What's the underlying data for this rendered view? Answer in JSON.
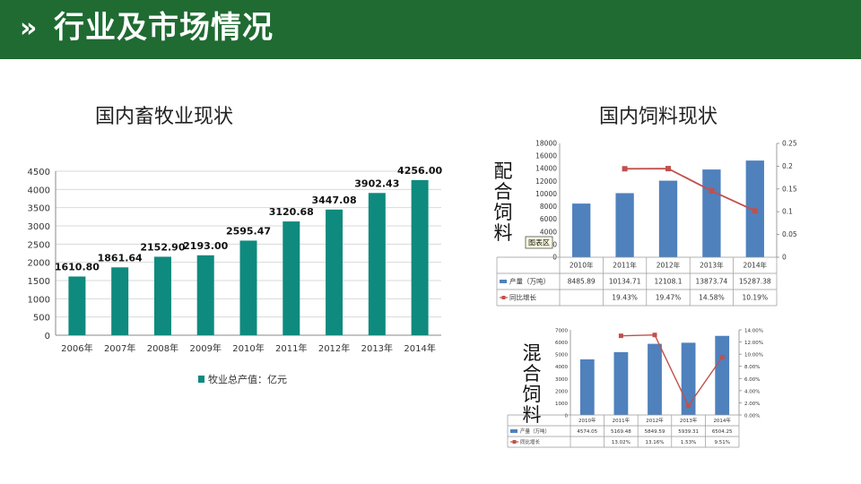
{
  "header": {
    "chevron": "»",
    "title": "行业及市场情况"
  },
  "left": {
    "heading": "国内畜牧业现状",
    "colors": {
      "bar": "#0f8a7e",
      "grid": "#d9d9d9",
      "axis": "#888888"
    },
    "chart_data": {
      "type": "bar",
      "categories": [
        "2006年",
        "2007年",
        "2008年",
        "2009年",
        "2010年",
        "2011年",
        "2012年",
        "2013年",
        "2014年"
      ],
      "values": [
        1610.8,
        1861.64,
        2152.9,
        2193.0,
        2595.47,
        3120.68,
        3447.08,
        3902.43,
        4256.0
      ],
      "value_labels": [
        "1610.80",
        "1861.64",
        "2152.90",
        "2193.00",
        "2595.47",
        "3120.68",
        "3447.08",
        "3902.43",
        "4256.00"
      ],
      "yticks": [
        "0",
        "500",
        "1000",
        "1500",
        "2000",
        "2500",
        "3000",
        "3500",
        "4000",
        "4500"
      ],
      "ylim": [
        0,
        4500
      ],
      "legend": "牧业总产值：亿元",
      "legend_position": "bottom",
      "grid": true
    }
  },
  "right_top": {
    "heading": "国内饲料现状",
    "side_label": [
      "配",
      "合",
      "饲",
      "料"
    ],
    "tooltip": "图表区",
    "colors": {
      "bar": "#4f81bd",
      "line": "#c0504d"
    },
    "chart_data": {
      "type": "bar",
      "categories": [
        "2010年",
        "2011年",
        "2012年",
        "2013年",
        "2014年"
      ],
      "series": [
        {
          "name": "产量（万吨）",
          "values": [
            8485.89,
            10134.71,
            12108.1,
            13873.74,
            15287.38
          ],
          "labels": [
            "8485.89",
            "10134.71",
            "12108.1",
            "13873.74",
            "15287.38"
          ]
        },
        {
          "name": "同比增长",
          "type": "line",
          "axis": "right",
          "values": [
            null,
            0.1943,
            0.1947,
            0.1458,
            0.1019
          ],
          "labels": [
            "",
            "19.43%",
            "19.47%",
            "14.58%",
            "10.19%"
          ]
        }
      ],
      "y_left_ticks": [
        "0",
        "2000",
        "4000",
        "6000",
        "8000",
        "10000",
        "12000",
        "14000",
        "16000",
        "18000"
      ],
      "y_left_lim": [
        0,
        18000
      ],
      "y_right_ticks": [
        "0",
        "0.05",
        "0.1",
        "0.15",
        "0.2",
        "0.25"
      ],
      "y_right_lim": [
        0,
        0.25
      ]
    }
  },
  "right_bottom": {
    "side_label": [
      "混",
      "合",
      "饲",
      "料"
    ],
    "colors": {
      "bar": "#4f81bd",
      "line": "#c0504d"
    },
    "chart_data": {
      "type": "bar",
      "categories": [
        "2010年",
        "2011年",
        "2012年",
        "2013年",
        "2014年"
      ],
      "series": [
        {
          "name": "产量（万吨）",
          "values": [
            4574.05,
            5169.48,
            5849.59,
            5939.31,
            6504.25
          ],
          "labels": [
            "4574.05",
            "5169.48",
            "5849.59",
            "5939.31",
            "6504.25"
          ]
        },
        {
          "name": "同比增长",
          "type": "line",
          "axis": "right",
          "values": [
            null,
            13.02,
            13.16,
            1.53,
            9.51
          ],
          "labels": [
            "",
            "13.02%",
            "13.16%",
            "1.53%",
            "9.51%"
          ]
        }
      ],
      "y_left_ticks": [
        "0",
        "1000",
        "2000",
        "3000",
        "4000",
        "5000",
        "6000",
        "7000"
      ],
      "y_left_lim": [
        0,
        7000
      ],
      "y_right_ticks": [
        "0.00%",
        "2.00%",
        "4.00%",
        "6.00%",
        "8.00%",
        "10.00%",
        "12.00%",
        "14.00%"
      ],
      "y_right_lim": [
        0,
        14
      ]
    }
  }
}
